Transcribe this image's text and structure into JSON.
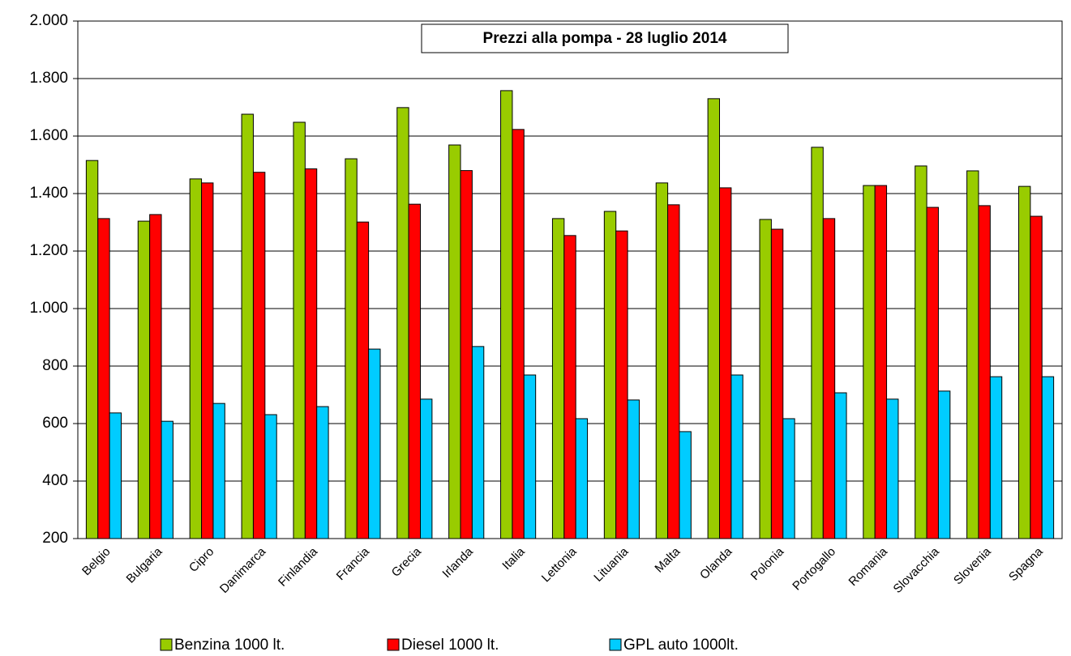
{
  "chart_data": {
    "type": "bar",
    "title": "Prezzi  alla pompa -  28 luglio 2014",
    "categories": [
      "Belgio",
      "Bulgaria",
      "Cipro",
      "Danimarca",
      "Finlandia",
      "Francia",
      "Grecia",
      "Irlanda",
      "Italia",
      "Lettonia",
      "Lituania",
      "Malta",
      "Olanda",
      "Polonia",
      "Portogallo",
      "Romania",
      "Slovacchia",
      "Slovenia",
      "Spagna"
    ],
    "series": [
      {
        "name": "Benzina 1000 lt.",
        "color": "#99cc00",
        "values": [
          1515,
          1304,
          1451,
          1676,
          1648,
          1521,
          1699,
          1569,
          1758,
          1313,
          1338,
          1437,
          1730,
          1310,
          1561,
          1428,
          1496,
          1479,
          1425
        ]
      },
      {
        "name": "Diesel 1000 lt.",
        "color": "#ff0000",
        "values": [
          1313,
          1327,
          1437,
          1474,
          1486,
          1301,
          1363,
          1480,
          1623,
          1254,
          1270,
          1361,
          1420,
          1276,
          1313,
          1428,
          1352,
          1358,
          1321
        ]
      },
      {
        "name": "GPL auto 1000lt.",
        "color": "#00ccff",
        "values": [
          637,
          608,
          670,
          631,
          659,
          859,
          685,
          868,
          769,
          617,
          682,
          572,
          769,
          617,
          707,
          685,
          713,
          763,
          763
        ]
      }
    ],
    "ylim": [
      200,
      2000
    ],
    "yticks": [
      200,
      400,
      600,
      800,
      {
        "value": 1000,
        "label": "1.000"
      },
      {
        "value": 1200,
        "label": "1.200"
      },
      {
        "value": 1400,
        "label": "1.400"
      },
      {
        "value": 1600,
        "label": "1.600"
      },
      {
        "value": 1800,
        "label": "1.800"
      },
      {
        "value": 2000,
        "label": "2.000"
      }
    ],
    "grid": true,
    "legend": "bottom"
  }
}
